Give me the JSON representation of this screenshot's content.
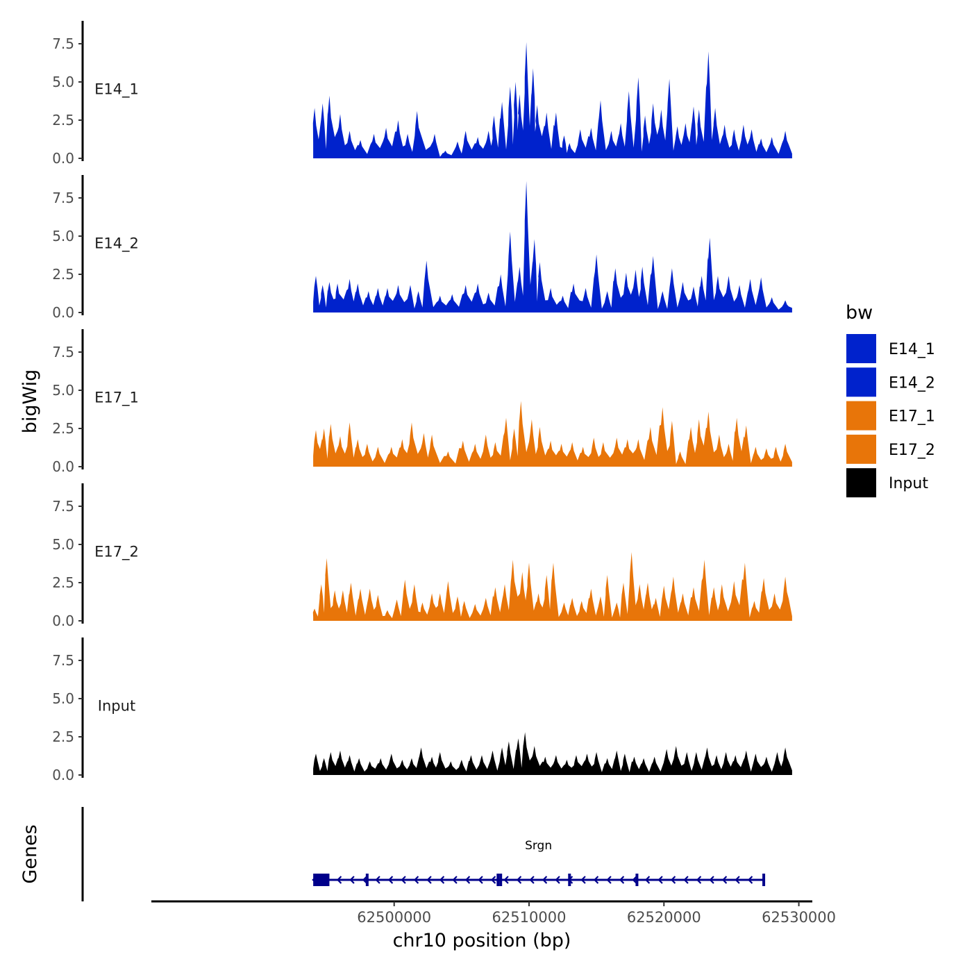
{
  "chart_data": {
    "type": "area",
    "ylabel": "bigWig",
    "xlabel": "chr10 position (bp)",
    "gene_panel_label": "Genes",
    "xlim": [
      62482000,
      62531000
    ],
    "ylim": [
      0,
      9
    ],
    "y_ticks": [
      "0.0",
      "2.5",
      "5.0",
      "7.5"
    ],
    "y_tick_values": [
      0,
      2.5,
      5,
      7.5
    ],
    "x_ticks": [
      "62500000",
      "62510000",
      "62520000",
      "62530000"
    ],
    "x_tick_values": [
      62500000,
      62510000,
      62520000,
      62530000
    ],
    "track_start": 62494000,
    "track_end": 62529500,
    "legend": {
      "title": "bw",
      "position": "right",
      "entries": [
        {
          "label": "E14_1",
          "color": "#0022cc"
        },
        {
          "label": "E14_2",
          "color": "#0022cc"
        },
        {
          "label": "E17_1",
          "color": "#e87509"
        },
        {
          "label": "E17_2",
          "color": "#e87509"
        },
        {
          "label": "Input",
          "color": "#000000"
        }
      ]
    },
    "series": [
      {
        "name": "E14_1",
        "color": "#0022cc",
        "peaks": [
          [
            62494100,
            3.3
          ],
          [
            62494700,
            3.6
          ],
          [
            62495200,
            4.1
          ],
          [
            62496000,
            2.9
          ],
          [
            62496700,
            1.8
          ],
          [
            62497500,
            1.2
          ],
          [
            62498500,
            1.6
          ],
          [
            62499400,
            2.0
          ],
          [
            62500300,
            2.5
          ],
          [
            62501000,
            1.6
          ],
          [
            62501700,
            3.1
          ],
          [
            62503000,
            1.6
          ],
          [
            62503800,
            0.5
          ],
          [
            62504700,
            1.1
          ],
          [
            62505300,
            1.8
          ],
          [
            62506200,
            1.4
          ],
          [
            62507000,
            1.8
          ],
          [
            62507400,
            2.8
          ],
          [
            62508000,
            3.7
          ],
          [
            62508600,
            4.7
          ],
          [
            62509000,
            5.0
          ],
          [
            62509300,
            4.2
          ],
          [
            62509800,
            7.6
          ],
          [
            62510300,
            5.9
          ],
          [
            62510600,
            3.5
          ],
          [
            62511300,
            3.0
          ],
          [
            62512000,
            3.0
          ],
          [
            62512600,
            1.5
          ],
          [
            62513000,
            1.0
          ],
          [
            62513800,
            1.9
          ],
          [
            62514600,
            2.0
          ],
          [
            62515300,
            3.8
          ],
          [
            62516100,
            1.8
          ],
          [
            62516800,
            2.3
          ],
          [
            62517400,
            4.4
          ],
          [
            62518100,
            5.3
          ],
          [
            62518600,
            2.8
          ],
          [
            62519200,
            3.6
          ],
          [
            62519800,
            3.2
          ],
          [
            62520400,
            5.2
          ],
          [
            62521000,
            2.1
          ],
          [
            62521600,
            2.3
          ],
          [
            62522200,
            3.4
          ],
          [
            62522600,
            3.2
          ],
          [
            62523300,
            7.0
          ],
          [
            62523800,
            3.3
          ],
          [
            62524500,
            2.2
          ],
          [
            62525200,
            1.9
          ],
          [
            62525900,
            2.2
          ],
          [
            62526500,
            1.9
          ],
          [
            62527200,
            1.3
          ],
          [
            62528000,
            1.4
          ],
          [
            62529000,
            1.8
          ]
        ]
      },
      {
        "name": "E14_2",
        "color": "#0022cc",
        "peaks": [
          [
            62494200,
            2.4
          ],
          [
            62494700,
            1.8
          ],
          [
            62495200,
            2.0
          ],
          [
            62495800,
            1.9
          ],
          [
            62496700,
            2.2
          ],
          [
            62497300,
            1.9
          ],
          [
            62498100,
            1.4
          ],
          [
            62498800,
            1.6
          ],
          [
            62499500,
            1.6
          ],
          [
            62500300,
            1.8
          ],
          [
            62501200,
            1.8
          ],
          [
            62501800,
            1.4
          ],
          [
            62502400,
            3.4
          ],
          [
            62503400,
            1.1
          ],
          [
            62504300,
            1.2
          ],
          [
            62505300,
            1.8
          ],
          [
            62506200,
            1.9
          ],
          [
            62507000,
            1.3
          ],
          [
            62507900,
            2.5
          ],
          [
            62508600,
            5.3
          ],
          [
            62509300,
            3.0
          ],
          [
            62509800,
            8.6
          ],
          [
            62510400,
            4.8
          ],
          [
            62510800,
            3.3
          ],
          [
            62511600,
            1.6
          ],
          [
            62512500,
            1.1
          ],
          [
            62513300,
            1.9
          ],
          [
            62514200,
            1.6
          ],
          [
            62515000,
            3.8
          ],
          [
            62515800,
            1.4
          ],
          [
            62516400,
            2.9
          ],
          [
            62517200,
            2.6
          ],
          [
            62517900,
            2.8
          ],
          [
            62518400,
            3.0
          ],
          [
            62519200,
            3.7
          ],
          [
            62519900,
            1.4
          ],
          [
            62520600,
            2.9
          ],
          [
            62521400,
            2.0
          ],
          [
            62522200,
            1.7
          ],
          [
            62522800,
            2.4
          ],
          [
            62523400,
            4.9
          ],
          [
            62524000,
            2.4
          ],
          [
            62524800,
            2.4
          ],
          [
            62525600,
            1.8
          ],
          [
            62526400,
            2.2
          ],
          [
            62527200,
            2.3
          ],
          [
            62528000,
            1.0
          ],
          [
            62529000,
            0.8
          ]
        ]
      },
      {
        "name": "E17_1",
        "color": "#e87509",
        "peaks": [
          [
            62494200,
            2.4
          ],
          [
            62494800,
            2.5
          ],
          [
            62495300,
            2.8
          ],
          [
            62496000,
            2.0
          ],
          [
            62496700,
            2.9
          ],
          [
            62497300,
            1.8
          ],
          [
            62498000,
            1.5
          ],
          [
            62498800,
            1.3
          ],
          [
            62499800,
            1.3
          ],
          [
            62500600,
            1.8
          ],
          [
            62501300,
            2.9
          ],
          [
            62502200,
            2.2
          ],
          [
            62502800,
            2.1
          ],
          [
            62504000,
            1.0
          ],
          [
            62505100,
            1.7
          ],
          [
            62506000,
            1.5
          ],
          [
            62506800,
            2.1
          ],
          [
            62507500,
            1.6
          ],
          [
            62508300,
            3.2
          ],
          [
            62508900,
            2.5
          ],
          [
            62509400,
            4.3
          ],
          [
            62510200,
            3.1
          ],
          [
            62510800,
            2.6
          ],
          [
            62511600,
            1.7
          ],
          [
            62512400,
            1.5
          ],
          [
            62513200,
            1.6
          ],
          [
            62514000,
            1.3
          ],
          [
            62514800,
            1.9
          ],
          [
            62515500,
            1.6
          ],
          [
            62516500,
            1.9
          ],
          [
            62517300,
            1.8
          ],
          [
            62518100,
            1.8
          ],
          [
            62519000,
            2.6
          ],
          [
            62519900,
            3.9
          ],
          [
            62520600,
            3.0
          ],
          [
            62521200,
            1.0
          ],
          [
            62522000,
            2.6
          ],
          [
            62522600,
            3.1
          ],
          [
            62523300,
            3.6
          ],
          [
            62524100,
            2.1
          ],
          [
            62524800,
            1.5
          ],
          [
            62525400,
            3.2
          ],
          [
            62526100,
            2.7
          ],
          [
            62526800,
            1.3
          ],
          [
            62527600,
            1.2
          ],
          [
            62528300,
            1.3
          ],
          [
            62529000,
            1.5
          ]
        ]
      },
      {
        "name": "E17_2",
        "color": "#e87509",
        "peaks": [
          [
            62494100,
            0.8
          ],
          [
            62494600,
            2.4
          ],
          [
            62495000,
            4.1
          ],
          [
            62495600,
            2.0
          ],
          [
            62496200,
            2.0
          ],
          [
            62496800,
            2.5
          ],
          [
            62497500,
            2.1
          ],
          [
            62498200,
            2.1
          ],
          [
            62498800,
            1.7
          ],
          [
            62499500,
            0.7
          ],
          [
            62500200,
            1.4
          ],
          [
            62500800,
            2.7
          ],
          [
            62501500,
            2.4
          ],
          [
            62502100,
            1.2
          ],
          [
            62502800,
            1.8
          ],
          [
            62503400,
            1.8
          ],
          [
            62504000,
            2.6
          ],
          [
            62504700,
            1.6
          ],
          [
            62505200,
            1.3
          ],
          [
            62506000,
            1.1
          ],
          [
            62506800,
            1.5
          ],
          [
            62507500,
            2.2
          ],
          [
            62508200,
            2.4
          ],
          [
            62508800,
            4.0
          ],
          [
            62509500,
            3.2
          ],
          [
            62510000,
            3.8
          ],
          [
            62510700,
            1.8
          ],
          [
            62511300,
            3.0
          ],
          [
            62511800,
            3.8
          ],
          [
            62512600,
            1.2
          ],
          [
            62513200,
            1.5
          ],
          [
            62513900,
            1.3
          ],
          [
            62514600,
            2.1
          ],
          [
            62515300,
            1.6
          ],
          [
            62515800,
            3.0
          ],
          [
            62516500,
            1.2
          ],
          [
            62517000,
            2.5
          ],
          [
            62517600,
            4.5
          ],
          [
            62518200,
            2.4
          ],
          [
            62518800,
            2.5
          ],
          [
            62519400,
            1.5
          ],
          [
            62520000,
            2.3
          ],
          [
            62520700,
            2.9
          ],
          [
            62521400,
            1.8
          ],
          [
            62522200,
            2.2
          ],
          [
            62523000,
            4.0
          ],
          [
            62523700,
            2.2
          ],
          [
            62524300,
            2.4
          ],
          [
            62525200,
            2.6
          ],
          [
            62526000,
            3.8
          ],
          [
            62526700,
            1.3
          ],
          [
            62527400,
            2.8
          ],
          [
            62528200,
            1.8
          ],
          [
            62529000,
            2.9
          ]
        ]
      },
      {
        "name": "Input",
        "color": "#000000",
        "peaks": [
          [
            62494200,
            1.4
          ],
          [
            62494800,
            1.1
          ],
          [
            62495300,
            1.5
          ],
          [
            62496000,
            1.6
          ],
          [
            62496700,
            1.3
          ],
          [
            62497400,
            1.1
          ],
          [
            62498200,
            0.9
          ],
          [
            62499000,
            1.1
          ],
          [
            62499800,
            1.4
          ],
          [
            62500600,
            1.0
          ],
          [
            62501300,
            1.1
          ],
          [
            62502000,
            1.8
          ],
          [
            62502800,
            1.2
          ],
          [
            62503400,
            1.5
          ],
          [
            62504200,
            0.9
          ],
          [
            62505000,
            1.0
          ],
          [
            62505700,
            1.3
          ],
          [
            62506500,
            1.3
          ],
          [
            62507300,
            1.6
          ],
          [
            62508000,
            1.8
          ],
          [
            62508500,
            2.2
          ],
          [
            62509200,
            2.4
          ],
          [
            62509700,
            2.8
          ],
          [
            62510400,
            1.9
          ],
          [
            62511200,
            1.2
          ],
          [
            62512000,
            1.3
          ],
          [
            62512800,
            1.0
          ],
          [
            62513500,
            1.3
          ],
          [
            62514300,
            1.4
          ],
          [
            62515000,
            1.5
          ],
          [
            62515800,
            1.1
          ],
          [
            62516500,
            1.6
          ],
          [
            62517100,
            1.4
          ],
          [
            62517800,
            1.2
          ],
          [
            62518500,
            1.1
          ],
          [
            62519300,
            1.2
          ],
          [
            62520200,
            1.7
          ],
          [
            62520900,
            1.9
          ],
          [
            62521700,
            1.5
          ],
          [
            62522400,
            1.5
          ],
          [
            62523200,
            1.8
          ],
          [
            62523900,
            1.3
          ],
          [
            62524600,
            1.5
          ],
          [
            62525300,
            1.3
          ],
          [
            62526100,
            1.6
          ],
          [
            62526800,
            1.4
          ],
          [
            62527600,
            1.2
          ],
          [
            62528400,
            1.5
          ],
          [
            62529000,
            1.8
          ]
        ]
      }
    ],
    "gene": {
      "name": "Srgn",
      "strand": "-",
      "start": 62494000,
      "end": 62527400,
      "color": "#00008b",
      "coding_exon": [
        62494000,
        62495200
      ],
      "exon_marks": [
        62498000,
        62507700,
        62507900,
        62513000,
        62518000,
        62527400
      ]
    }
  }
}
